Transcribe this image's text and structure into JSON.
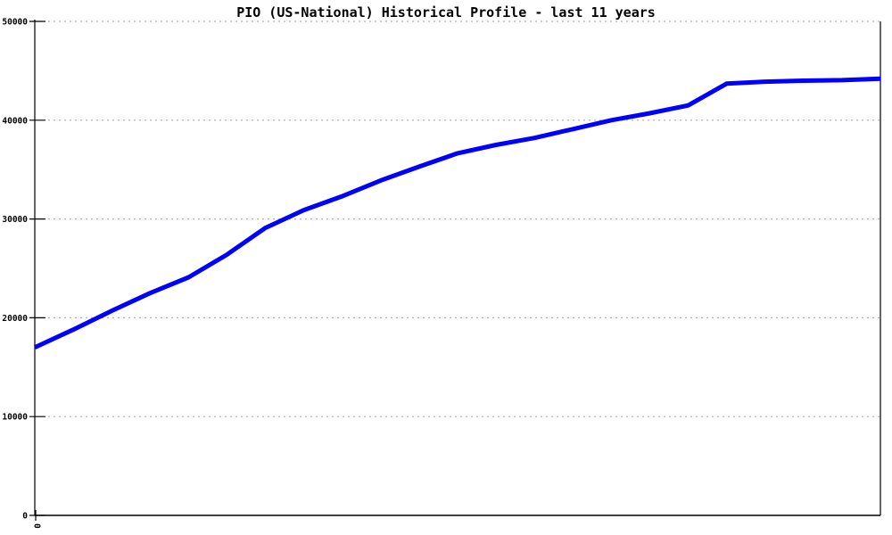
{
  "page": {
    "background_color": "#ffffff"
  },
  "chart_data": {
    "type": "line",
    "title": "PIO (US-National) Historical Profile - last 11 years",
    "xlabel": "",
    "ylabel": "",
    "xlim": [
      0,
      11
    ],
    "ylim": [
      0,
      50000
    ],
    "yticks": [
      0,
      10000,
      20000,
      30000,
      40000,
      50000
    ],
    "ytick_labels": [
      "0",
      "10000",
      "20000",
      "30000",
      "40000",
      "50000"
    ],
    "xticks": [
      0
    ],
    "xtick_labels": [
      "0"
    ],
    "xtick_label_rotation_deg": 90,
    "grid": "horizontal dotted gridlines at each y tick",
    "legend": "none",
    "line_color": "#0000ff",
    "line_width": 5,
    "axis_color": "#000000",
    "grid_color": "#b0b0b0",
    "series": [
      {
        "name": "PIO (US-National)",
        "x": [
          0,
          0.5,
          1,
          1.5,
          2,
          2.5,
          3,
          3.5,
          4,
          4.5,
          5,
          5.5,
          6,
          6.5,
          7,
          7.5,
          8,
          8.5,
          9,
          9.5,
          10,
          10.5,
          11
        ],
        "values": [
          17000,
          18800,
          20700,
          22500,
          24100,
          26400,
          29100,
          30900,
          32300,
          33900,
          35300,
          36650,
          37500,
          38200,
          39100,
          40000,
          40700,
          41500,
          43700,
          43900,
          44000,
          44050,
          44200
        ]
      }
    ]
  }
}
